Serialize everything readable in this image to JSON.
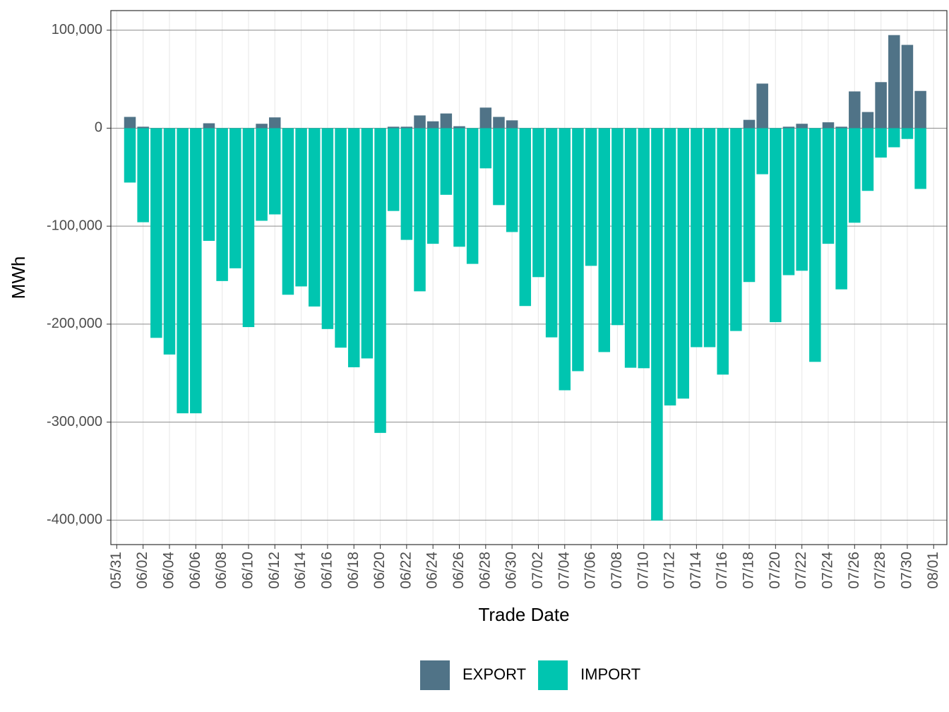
{
  "chart_data": {
    "type": "bar",
    "x_label": "Trade Date",
    "y_label": "MWh",
    "categories": [
      "06/01",
      "06/02",
      "06/03",
      "06/04",
      "06/05",
      "06/06",
      "06/07",
      "06/08",
      "06/09",
      "06/10",
      "06/11",
      "06/12",
      "06/13",
      "06/14",
      "06/15",
      "06/16",
      "06/17",
      "06/18",
      "06/19",
      "06/20",
      "06/21",
      "06/22",
      "06/23",
      "06/24",
      "06/25",
      "06/26",
      "06/27",
      "06/28",
      "06/29",
      "06/30",
      "07/01",
      "07/02",
      "07/03",
      "07/04",
      "07/05",
      "07/06",
      "07/07",
      "07/08",
      "07/09",
      "07/10",
      "07/11",
      "07/12",
      "07/13",
      "07/14",
      "07/15",
      "07/16",
      "07/17",
      "07/18",
      "07/19",
      "07/20",
      "07/21",
      "07/22",
      "07/23",
      "07/24",
      "07/25",
      "07/26",
      "07/27",
      "07/28",
      "07/29",
      "07/30",
      "07/31"
    ],
    "series": [
      {
        "name": "EXPORT",
        "color": "#507387",
        "values": [
          11500,
          1500,
          0,
          0,
          0,
          0,
          5000,
          0,
          0,
          0,
          4500,
          11000,
          0,
          0,
          0,
          0,
          0,
          0,
          0,
          0,
          1500,
          1500,
          13000,
          7000,
          15000,
          2000,
          0,
          21000,
          11500,
          8000,
          0,
          0,
          0,
          0,
          0,
          0,
          0,
          0,
          0,
          0,
          0,
          0,
          0,
          0,
          0,
          0,
          0,
          8500,
          45500,
          0,
          1500,
          4500,
          0,
          6000,
          1500,
          37500,
          16500,
          47000,
          95000,
          85000,
          38000
        ]
      },
      {
        "name": "IMPORT",
        "color": "#00c5b0",
        "values": [
          -55500,
          -96000,
          -214000,
          -231000,
          -291000,
          -291000,
          -115000,
          -156000,
          -143000,
          -203000,
          -94500,
          -88000,
          -170000,
          -161500,
          -182000,
          -205000,
          -224000,
          -244000,
          -235000,
          -311000,
          -84500,
          -114000,
          -166500,
          -118000,
          -68000,
          -121000,
          -138500,
          -41000,
          -78500,
          -106000,
          -181500,
          -152000,
          -213500,
          -267500,
          -248000,
          -140500,
          -228500,
          -201000,
          -244500,
          -245000,
          -400500,
          -283000,
          -276000,
          -223500,
          -223500,
          -251500,
          -207000,
          -157000,
          -47000,
          -198000,
          -150000,
          -145500,
          -238500,
          -118000,
          -164500,
          -96500,
          -64000,
          -30000,
          -19500,
          -11000,
          -62000
        ]
      }
    ],
    "ylim": [
      -425000,
      120000
    ],
    "yticks": [
      {
        "value": -400000,
        "label": "-400,000"
      },
      {
        "value": -300000,
        "label": "-300,000"
      },
      {
        "value": -200000,
        "label": "-200,000"
      },
      {
        "value": -100000,
        "label": "-100,000"
      },
      0,
      {
        "value": 100000,
        "label": "100,000"
      }
    ],
    "xticks": [
      "05/31",
      "06/02",
      "06/04",
      "06/06",
      "06/08",
      "06/10",
      "06/12",
      "06/14",
      "06/16",
      "06/18",
      "06/20",
      "06/22",
      "06/24",
      "06/26",
      "06/28",
      "06/30",
      "07/02",
      "07/04",
      "07/06",
      "07/08",
      "07/10",
      "07/12",
      "07/14",
      "07/16",
      "07/18",
      "07/20",
      "07/22",
      "07/24",
      "07/26",
      "07/28",
      "07/30",
      "08/01"
    ],
    "grid": true,
    "legend": "bottom"
  }
}
